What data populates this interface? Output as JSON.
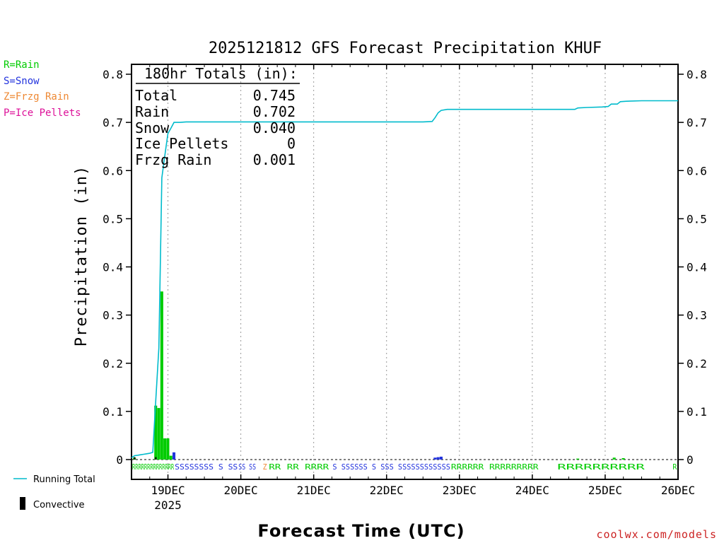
{
  "chart_data": {
    "type": "bar",
    "title": "2025121812 GFS Forecast Precipitation KHUF",
    "ylabel": "Precipitation (in)",
    "xlabel": "Forecast Time (UTC)",
    "ylim": [
      0,
      0.82
    ],
    "y_ticks": [
      0,
      0.1,
      0.2,
      0.3,
      0.4,
      0.5,
      0.6,
      0.7,
      0.8
    ],
    "y_tick_labels": [
      "0",
      "0.1",
      "0.2",
      "0.3",
      "0.4",
      "0.5",
      "0.6",
      "0.7",
      "0.8"
    ],
    "x_range_hours": [
      0,
      180
    ],
    "x_ticks": [
      {
        "hour": 12,
        "label": "19DEC",
        "sublabel": "2025"
      },
      {
        "hour": 36,
        "label": "20DEC"
      },
      {
        "hour": 60,
        "label": "21DEC"
      },
      {
        "hour": 84,
        "label": "22DEC"
      },
      {
        "hour": 108,
        "label": "23DEC"
      },
      {
        "hour": 132,
        "label": "24DEC"
      },
      {
        "hour": 156,
        "label": "25DEC"
      },
      {
        "hour": 180,
        "label": "26DEC"
      }
    ],
    "series": [
      {
        "name": "Rain",
        "color": "#00cc00",
        "bars": [
          {
            "hour": 1,
            "value": 0.004
          },
          {
            "hour": 8,
            "value": 0.112
          },
          {
            "hour": 9,
            "value": 0.107
          },
          {
            "hour": 10,
            "value": 0.349
          },
          {
            "hour": 11,
            "value": 0.044
          },
          {
            "hour": 12,
            "value": 0.044
          },
          {
            "hour": 13,
            "value": 0.008
          },
          {
            "hour": 147,
            "value": 0.002
          },
          {
            "hour": 159,
            "value": 0.004
          },
          {
            "hour": 162,
            "value": 0.003
          }
        ]
      },
      {
        "name": "Snow",
        "color": "#2233dd",
        "bars": [
          {
            "hour": 14,
            "value": 0.015
          },
          {
            "hour": 100,
            "value": 0.004
          },
          {
            "hour": 101,
            "value": 0.005
          },
          {
            "hour": 102,
            "value": 0.006
          }
        ]
      },
      {
        "name": "Convective",
        "color": "#000000",
        "bars": [
          {
            "hour": 1,
            "value": 0.005
          },
          {
            "hour": 8,
            "value": 0.005
          }
        ]
      },
      {
        "name": "Running Total",
        "color": "#00bbcc",
        "type": "line",
        "points": [
          [
            0,
            0.004
          ],
          [
            1,
            0.008
          ],
          [
            2,
            0.009
          ],
          [
            3,
            0.01
          ],
          [
            4,
            0.011
          ],
          [
            5,
            0.012
          ],
          [
            6,
            0.013
          ],
          [
            7,
            0.015
          ],
          [
            8,
            0.125
          ],
          [
            9,
            0.232
          ],
          [
            10,
            0.585
          ],
          [
            11,
            0.632
          ],
          [
            12,
            0.677
          ],
          [
            13,
            0.688
          ],
          [
            14,
            0.7
          ],
          [
            16,
            0.7
          ],
          [
            18,
            0.701
          ],
          [
            24,
            0.701
          ],
          [
            48,
            0.701
          ],
          [
            72,
            0.701
          ],
          [
            96,
            0.701
          ],
          [
            99,
            0.702
          ],
          [
            100,
            0.71
          ],
          [
            101,
            0.72
          ],
          [
            102,
            0.725
          ],
          [
            104,
            0.727
          ],
          [
            120,
            0.727
          ],
          [
            146,
            0.727
          ],
          [
            147,
            0.73
          ],
          [
            150,
            0.731
          ],
          [
            155,
            0.732
          ],
          [
            157,
            0.733
          ],
          [
            158,
            0.738
          ],
          [
            160,
            0.738
          ],
          [
            161,
            0.743
          ],
          [
            163,
            0.744
          ],
          [
            168,
            0.745
          ],
          [
            180,
            0.745
          ]
        ]
      }
    ],
    "ptype_row": [
      {
        "t": "RRRRRRRRRRRRRR",
        "c": "R",
        "h0": 0,
        "h1": 14
      },
      {
        "t": "SSSSSSSS S SS",
        "c": "S",
        "h0": 14,
        "h1": 35
      },
      {
        "t": "SS SS",
        "c": "S",
        "h0": 35,
        "h1": 41
      },
      {
        "t": "Z",
        "c": "Z",
        "h0": 43,
        "h1": 44
      },
      {
        "t": "RR RR RRRR",
        "c": "R",
        "h0": 45,
        "h1": 65
      },
      {
        "t": "S SSSSSS S SSS SSSSSSSSSSSS",
        "c": "S",
        "h0": 66,
        "h1": 105
      },
      {
        "t": "RRRRRR RRRRRRRRR",
        "c": "R",
        "h0": 105,
        "h1": 134
      },
      {
        "t": "RRRRRRRRRR",
        "c": "R",
        "h0": 140,
        "h1": 169
      },
      {
        "t": "R",
        "c": "R",
        "h0": 178,
        "h1": 179
      }
    ],
    "totals": {
      "header": "180hr Totals (in):",
      "rows": [
        {
          "label": "Total",
          "value": "0.745"
        },
        {
          "label": "Rain",
          "value": "0.702"
        },
        {
          "label": "Snow",
          "value": "0.040"
        },
        {
          "label": "Ice Pellets",
          "value": "0"
        },
        {
          "label": "Frzg Rain",
          "value": "0.001"
        }
      ]
    },
    "type_legend": [
      {
        "text": "R=Rain",
        "color": "#00cc00"
      },
      {
        "text": "S=Snow",
        "color": "#2233dd"
      },
      {
        "text": "Z=Frzg Rain",
        "color": "#ee8833"
      },
      {
        "text": "P=Ice Pellets",
        "color": "#dd1199"
      }
    ],
    "line_legend": {
      "running_total": "Running Total",
      "convective": "Convective"
    },
    "credit": "coolwx.com/models"
  }
}
